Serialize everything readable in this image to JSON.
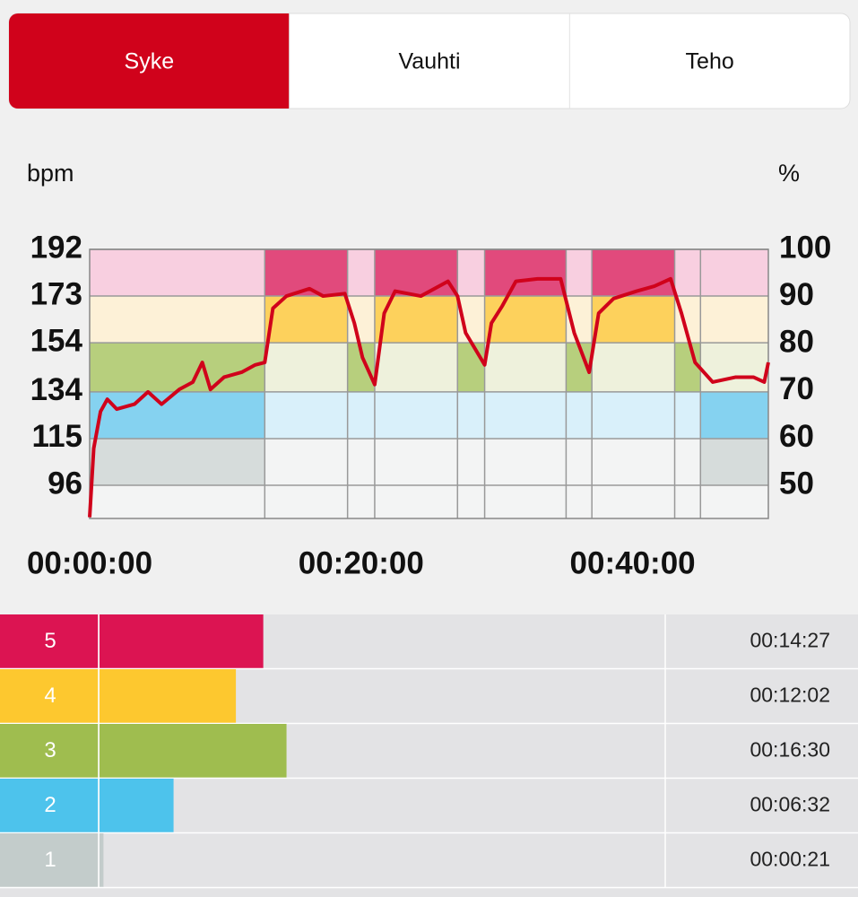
{
  "tabs": {
    "items": [
      "Syke",
      "Vauhti",
      "Teho"
    ],
    "active": 0,
    "active_color": "#d0021b"
  },
  "chart_data": {
    "type": "line",
    "y_label": "bpm",
    "y2_label": "%",
    "x": [
      0,
      0.3,
      0.8,
      1.3,
      2.0,
      3.3,
      4.3,
      5.3,
      6.6,
      7.6,
      8.3,
      8.9,
      9.9,
      11.2,
      12.2,
      12.9,
      13.5,
      14.5,
      16.2,
      17.2,
      18.8,
      19.5,
      20.1,
      21.0,
      21.7,
      22.5,
      24.4,
      26.4,
      27.1,
      27.7,
      29.1,
      29.6,
      30.4,
      31.4,
      33.0,
      34.7,
      35.7,
      36.8,
      37.5,
      38.6,
      40.3,
      41.6,
      42.8,
      43.6,
      44.6,
      45.9,
      47.6,
      48.9,
      49.7,
      50
    ],
    "series": [
      {
        "color": "#d0021b",
        "values": [
          83,
          111,
          126,
          131,
          127,
          129,
          134,
          129,
          135,
          138,
          146,
          135,
          140,
          142,
          145,
          146,
          168,
          173,
          176,
          173,
          174,
          162,
          148,
          137,
          166,
          175,
          173,
          179,
          173,
          158,
          145,
          162,
          169,
          179,
          180,
          180,
          158,
          142,
          166,
          172,
          175,
          177,
          180,
          166,
          146,
          138,
          140,
          140,
          138,
          146
        ]
      }
    ],
    "xlim": [
      0,
      50
    ],
    "xticks": [
      {
        "value": 0,
        "label": "00:00:00"
      },
      {
        "value": 20,
        "label": "00:20:00"
      },
      {
        "value": 40,
        "label": "00:40:00"
      }
    ],
    "ylim": [
      82.5,
      192
    ],
    "yticks": [
      96,
      115,
      134,
      154,
      173,
      192
    ],
    "y2lim": [
      43,
      100
    ],
    "y2ticks": [
      50,
      60,
      70,
      80,
      90,
      100
    ],
    "zones": [
      {
        "zone": 1,
        "from": 96,
        "to": 115,
        "color": "#d6dcdb",
        "pale": "#f3f4f4"
      },
      {
        "zone": 2,
        "from": 115,
        "to": 134,
        "color": "#85d2f0",
        "pale": "#d9f0fa"
      },
      {
        "zone": 3,
        "from": 134,
        "to": 154,
        "color": "#b7cf7d",
        "pale": "#eef1dc"
      },
      {
        "zone": 4,
        "from": 154,
        "to": 173,
        "color": "#fdd15c",
        "pale": "#fdf1d7"
      },
      {
        "zone": 5,
        "from": 173,
        "to": 192,
        "color": "#e14a7c",
        "pale": "#f8cfe0"
      }
    ],
    "segments": [
      {
        "start": 0,
        "end": 12.9,
        "zones": [
          1,
          2,
          3
        ]
      },
      {
        "start": 12.9,
        "end": 19.0,
        "zones": [
          4,
          5
        ]
      },
      {
        "start": 19.0,
        "end": 21.0,
        "zones": [
          3
        ]
      },
      {
        "start": 21.0,
        "end": 27.1,
        "zones": [
          4,
          5
        ]
      },
      {
        "start": 27.1,
        "end": 29.1,
        "zones": [
          3
        ]
      },
      {
        "start": 29.1,
        "end": 35.1,
        "zones": [
          4,
          5
        ]
      },
      {
        "start": 35.1,
        "end": 37.0,
        "zones": [
          3
        ]
      },
      {
        "start": 37.0,
        "end": 43.1,
        "zones": [
          4,
          5
        ]
      },
      {
        "start": 43.1,
        "end": 45.0,
        "zones": [
          3
        ]
      },
      {
        "start": 45.0,
        "end": 50,
        "zones": [
          1,
          2
        ]
      }
    ]
  },
  "zone_times": {
    "xlim": [
      0,
      3000
    ],
    "rows": [
      {
        "zone": 5,
        "seconds": 867,
        "label": "00:14:27",
        "color": "#dc1452"
      },
      {
        "zone": 4,
        "seconds": 722,
        "label": "00:12:02",
        "color": "#fdc82f"
      },
      {
        "zone": 3,
        "seconds": 990,
        "label": "00:16:30",
        "color": "#9fbd4f"
      },
      {
        "zone": 2,
        "seconds": 392,
        "label": "00:06:32",
        "color": "#4dc3ec"
      },
      {
        "zone": 1,
        "seconds": 21,
        "label": "00:00:21",
        "color": "#c3cccb"
      }
    ]
  }
}
